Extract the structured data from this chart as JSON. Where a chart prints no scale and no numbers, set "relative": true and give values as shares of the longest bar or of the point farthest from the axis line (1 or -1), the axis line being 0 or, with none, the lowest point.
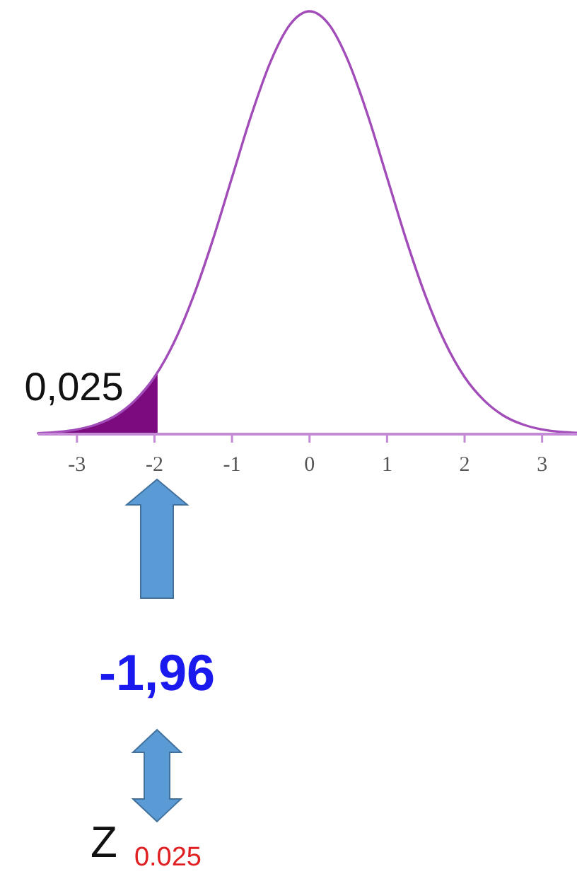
{
  "chart_data": {
    "type": "line",
    "relative": true,
    "xlim": [
      -3.5,
      3.45
    ],
    "xticks": [
      -3,
      -2,
      -1,
      0,
      1,
      2,
      3
    ],
    "series": [
      {
        "type": "area",
        "color": "#7b0b7e",
        "x": [
          -3.5,
          -3.25,
          -3,
          -2.75,
          -2.5,
          -2.25,
          -2,
          -1.96
        ],
        "values": [
          0.002,
          0.005,
          0.011,
          0.023,
          0.044,
          0.08,
          0.135,
          0.147
        ]
      },
      {
        "color": "#a14cb8",
        "x": [
          -3.5,
          -3.25,
          -3,
          -2.75,
          -2.5,
          -2.25,
          -2,
          -1.75,
          -1.5,
          -1.25,
          -1,
          -0.75,
          -0.5,
          -0.25,
          0,
          0.25,
          0.5,
          0.75,
          1,
          1.25,
          1.5,
          1.75,
          2,
          2.25,
          2.5,
          2.75,
          3,
          3.25,
          3.45
        ],
        "values": [
          0.002,
          0.005,
          0.011,
          0.023,
          0.044,
          0.08,
          0.135,
          0.216,
          0.325,
          0.458,
          0.607,
          0.755,
          0.882,
          0.969,
          1,
          0.969,
          0.882,
          0.755,
          0.607,
          0.458,
          0.325,
          0.216,
          0.135,
          0.08,
          0.044,
          0.023,
          0.011,
          0.005,
          0.003
        ]
      }
    ],
    "annotations": [
      {
        "text": "0,025",
        "x": -2.4,
        "y": 0.08
      },
      "-1,96",
      "Z$_{0.025}$"
    ]
  }
}
